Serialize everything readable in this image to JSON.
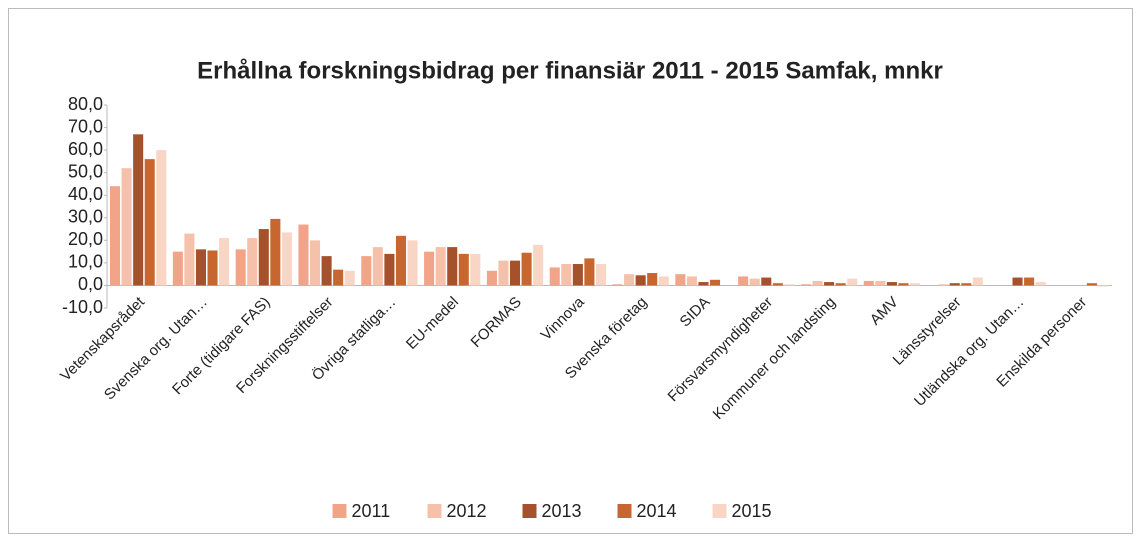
{
  "chart_data": {
    "type": "bar",
    "title": "Erhållna forskningsbidrag per finansiär 2011 - 2015 Samfak, mnkr",
    "categories": [
      "Vetenskapsrådet",
      "Svenska org. Utan…",
      "Forte (tidigare FAS)",
      "Forskningsstiftelser",
      "Övriga statliga…",
      "EU-medel",
      "FORMAS",
      "Vinnova",
      "Svenska företag",
      "SIDA",
      "Försvarsmyndigheter",
      "Kommuner och landsting",
      "AMV",
      "Länsstyrelser",
      "Utländska org. Utan…",
      "Enskilda personer"
    ],
    "series": [
      {
        "name": "2011",
        "color": "#f2a488",
        "values": [
          44,
          15,
          16,
          27,
          13,
          15,
          6.5,
          8,
          0.5,
          5,
          4,
          0.5,
          2,
          0,
          0,
          0
        ]
      },
      {
        "name": "2012",
        "color": "#f6c1ab",
        "values": [
          52,
          23,
          21,
          20,
          17,
          17,
          11,
          9.5,
          5,
          4,
          3,
          2,
          2,
          0.5,
          0,
          0
        ]
      },
      {
        "name": "2013",
        "color": "#a5512b",
        "values": [
          67,
          16,
          25,
          13,
          14,
          17,
          11,
          9.5,
          4.5,
          1.5,
          3.5,
          1.5,
          1.5,
          1,
          3.5,
          0
        ]
      },
      {
        "name": "2014",
        "color": "#c7662f",
        "values": [
          56,
          15.5,
          29.5,
          7,
          22,
          14,
          14.5,
          12,
          5.5,
          2.5,
          1,
          1,
          1,
          1,
          3.5,
          1
        ]
      },
      {
        "name": "2015",
        "color": "#f9d5c6",
        "values": [
          60,
          21,
          23.5,
          6.5,
          20,
          14,
          18,
          9.5,
          4,
          0,
          0.5,
          3,
          1,
          3.5,
          1.5,
          -0.5
        ]
      }
    ],
    "ylim": [
      -10,
      80
    ],
    "yticks": [
      {
        "value": -10,
        "label": "-10,0"
      },
      {
        "value": 0,
        "label": "0,0"
      },
      {
        "value": 10,
        "label": "10,0"
      },
      {
        "value": 20,
        "label": "20,0"
      },
      {
        "value": 30,
        "label": "30,0"
      },
      {
        "value": 40,
        "label": "40,0"
      },
      {
        "value": 50,
        "label": "50,0"
      },
      {
        "value": 60,
        "label": "60,0"
      },
      {
        "value": 70,
        "label": "70,0"
      },
      {
        "value": 80,
        "label": "80,0"
      }
    ],
    "legend": "bottom"
  }
}
